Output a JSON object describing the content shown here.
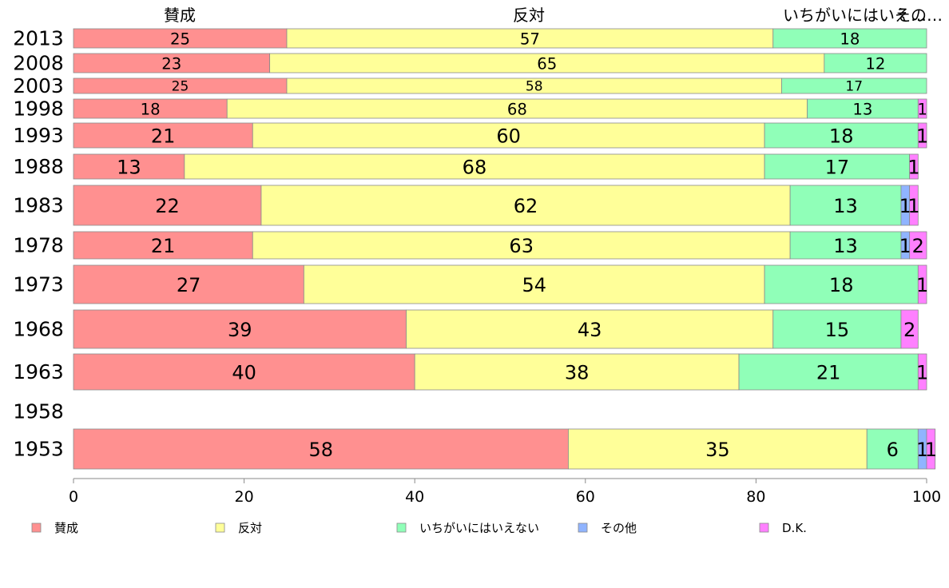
{
  "chart_data": {
    "type": "bar",
    "orientation": "horizontal",
    "stacked": true,
    "categories": [
      "2013",
      "2008",
      "2003",
      "1998",
      "1993",
      "1988",
      "1983",
      "1978",
      "1973",
      "1968",
      "1963",
      "1958",
      "1953"
    ],
    "series": [
      {
        "name": "賛成",
        "color": "#ff9090",
        "values": [
          25,
          23,
          25,
          18,
          21,
          13,
          22,
          21,
          27,
          39,
          40,
          null,
          58
        ]
      },
      {
        "name": "反対",
        "color": "#ffff99",
        "values": [
          57,
          65,
          58,
          68,
          60,
          68,
          62,
          63,
          54,
          43,
          38,
          null,
          35
        ]
      },
      {
        "name": "いちがいにはいえない",
        "color": "#90ffb8",
        "values": [
          18,
          12,
          17,
          13,
          18,
          17,
          13,
          13,
          18,
          15,
          21,
          null,
          6
        ]
      },
      {
        "name": "その他",
        "color": "#90b4ff",
        "values": [
          0,
          0,
          0,
          0,
          0,
          0,
          1,
          1,
          0,
          0,
          0,
          null,
          1
        ]
      },
      {
        "name": "D.K.",
        "color": "#ff80ff",
        "values": [
          0,
          0,
          0,
          1,
          1,
          1,
          1,
          2,
          1,
          2,
          1,
          null,
          1
        ]
      }
    ],
    "column_headers": [
      "賛成",
      "反対",
      "いちがいにはいえ…",
      "その…"
    ],
    "xlim": [
      0,
      100
    ],
    "xticks": [
      "0",
      "20",
      "40",
      "60",
      "80",
      "100"
    ],
    "grid": false,
    "legend": "bottom"
  }
}
